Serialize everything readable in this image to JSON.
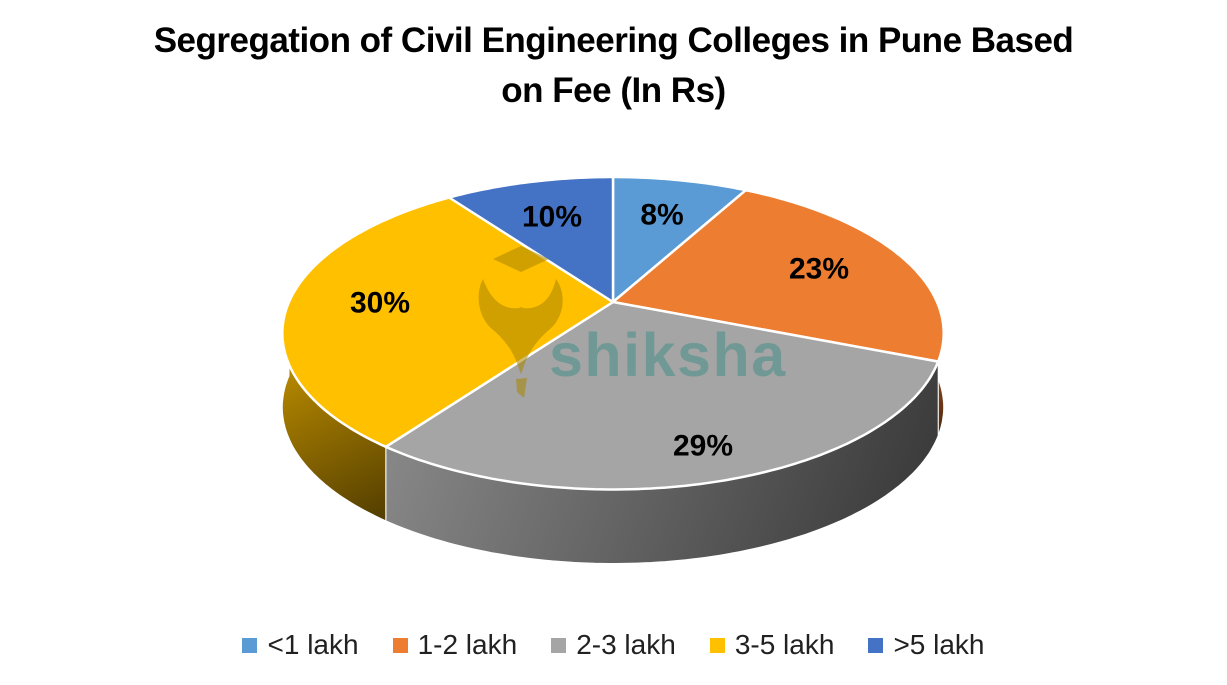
{
  "page": {
    "background": "#ffffff"
  },
  "chart_data": {
    "type": "pie",
    "style": "3d-perspective",
    "title": "Segregation of Civil Engineering Colleges in Pune Based on Fee (In Rs)",
    "title_lines": [
      "Segregation of Civil Engineering Colleges in Pune Based",
      "on Fee (In Rs)"
    ],
    "categories": [
      "<1 lakh",
      "1-2 lakh",
      "2-3 lakh",
      "3-5 lakh",
      ">5 lakh"
    ],
    "values": [
      8,
      23,
      29,
      30,
      10
    ],
    "data_labels": [
      "8%",
      "23%",
      "29%",
      "30%",
      "10%"
    ],
    "colors": [
      "#5B9BD5",
      "#ED7D31",
      "#A5A5A5",
      "#FFC000",
      "#4472C4"
    ],
    "start_angle_deg": 0,
    "direction": "clockwise",
    "grid": "off",
    "legend_position": "bottom",
    "title_color": "#000000",
    "label_color": "#000000",
    "legend_text_color": "#212121",
    "slice_border_color": "#ffffff"
  },
  "watermark": {
    "text": "shiksha",
    "text_color": "#3D8F88",
    "logo_color": "#A88600"
  }
}
